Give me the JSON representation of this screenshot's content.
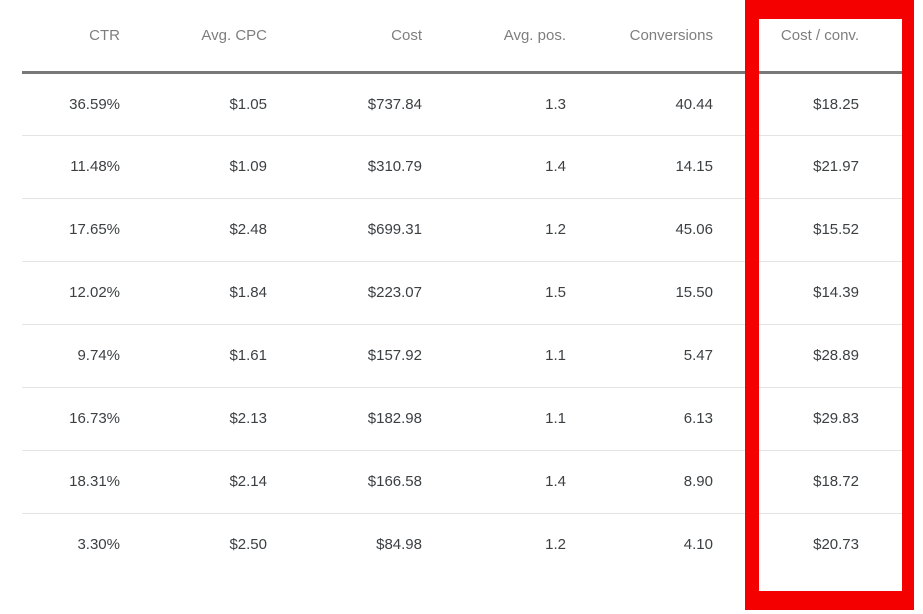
{
  "table": {
    "columns": [
      {
        "label": "CTR"
      },
      {
        "label": "Avg. CPC"
      },
      {
        "label": "Cost"
      },
      {
        "label": "Avg. pos."
      },
      {
        "label": "Conversions"
      },
      {
        "label": "Cost / conv."
      }
    ],
    "rows": [
      [
        "36.59%",
        "$1.05",
        "$737.84",
        "1.3",
        "40.44",
        "$18.25"
      ],
      [
        "11.48%",
        "$1.09",
        "$310.79",
        "1.4",
        "14.15",
        "$21.97"
      ],
      [
        "17.65%",
        "$2.48",
        "$699.31",
        "1.2",
        "45.06",
        "$15.52"
      ],
      [
        "12.02%",
        "$1.84",
        "$223.07",
        "1.5",
        "15.50",
        "$14.39"
      ],
      [
        "9.74%",
        "$1.61",
        "$157.92",
        "1.1",
        "5.47",
        "$28.89"
      ],
      [
        "16.73%",
        "$2.13",
        "$182.98",
        "1.1",
        "6.13",
        "$29.83"
      ],
      [
        "18.31%",
        "$2.14",
        "$166.58",
        "1.4",
        "8.90",
        "$18.72"
      ],
      [
        "3.30%",
        "$2.50",
        "$84.98",
        "1.2",
        "4.10",
        "$20.73"
      ]
    ]
  },
  "annotation": {
    "highlighted_column": "Cost / conv."
  },
  "colors": {
    "highlight_red": "#f40000",
    "header_text": "#7e7e7e",
    "data_text": "#3c4043",
    "header_rule": "#787878",
    "row_line": "#e4e4e4",
    "background": "#ffffff"
  }
}
